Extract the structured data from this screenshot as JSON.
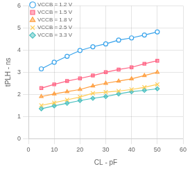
{
  "chart_data": {
    "type": "line",
    "xlabel": "CL - pF",
    "ylabel": "tPLH - ns",
    "x": [
      5,
      10,
      15,
      20,
      25,
      30,
      35,
      40,
      45,
      50
    ],
    "series": [
      {
        "name": "VCCB = 1.2 V",
        "marker": "circle-open",
        "values": [
          3.15,
          3.45,
          3.72,
          3.98,
          4.15,
          4.28,
          4.45,
          4.55,
          4.68,
          4.82
        ]
      },
      {
        "name": "VCCB = 1.5 V",
        "marker": "square",
        "values": [
          2.28,
          2.45,
          2.6,
          2.72,
          2.85,
          3.0,
          3.12,
          3.22,
          3.38,
          3.52
        ]
      },
      {
        "name": "VCCB = 1.8 V",
        "marker": "triangle",
        "values": [
          1.9,
          2.02,
          2.12,
          2.22,
          2.38,
          2.5,
          2.6,
          2.7,
          2.85,
          3.0
        ]
      },
      {
        "name": "VCCB = 2.5 V",
        "marker": "x",
        "values": [
          1.5,
          1.62,
          1.75,
          1.88,
          2.05,
          2.1,
          2.15,
          2.22,
          2.32,
          2.45
        ]
      },
      {
        "name": "VCCB = 3.3 V",
        "marker": "diamond",
        "values": [
          1.35,
          1.48,
          1.6,
          1.72,
          1.82,
          1.9,
          2.02,
          2.12,
          2.18,
          2.25
        ]
      }
    ],
    "xlim": [
      0,
      60
    ],
    "ylim": [
      0,
      6
    ],
    "xticks": [
      0,
      10,
      20,
      30,
      40,
      50,
      60
    ],
    "yticks": [
      0,
      1,
      2,
      3,
      4,
      5,
      6
    ],
    "grid": true,
    "legend": "upper left"
  }
}
